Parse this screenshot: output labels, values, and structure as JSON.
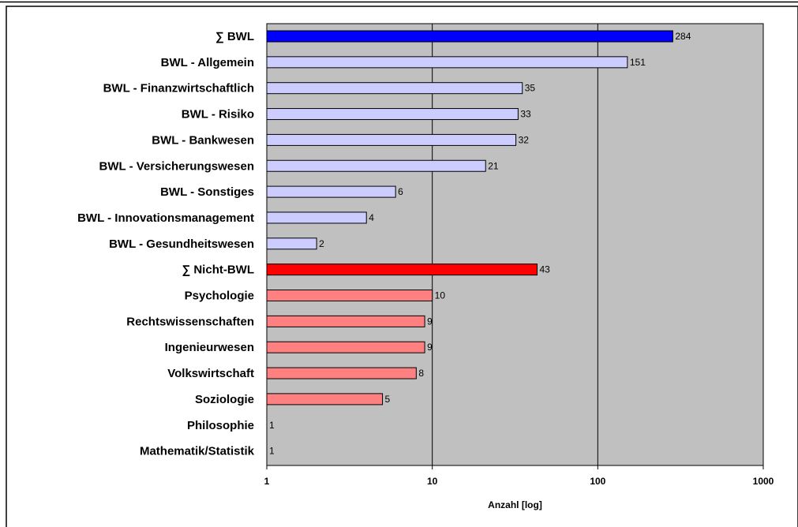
{
  "chart_data": {
    "type": "bar",
    "orientation": "horizontal",
    "xscale": "log",
    "xlabel": "Anzahl [log]",
    "xlim": [
      1,
      1000
    ],
    "xticks": [
      "1",
      "10",
      "100",
      "1000"
    ],
    "grid": true,
    "plot_background": "#c0c0c0",
    "categories": [
      "∑ BWL",
      "BWL - Allgemein",
      "BWL - Finanzwirtschaftlich",
      "BWL - Risiko",
      "BWL - Bankwesen",
      "BWL - Versicherungswesen",
      "BWL - Sonstiges",
      "BWL - Innovationsmanagement",
      "BWL - Gesundheitswesen",
      "∑ Nicht-BWL",
      "Psychologie",
      "Rechtswissenschaften",
      "Ingenieurwesen",
      "Volkswirtschaft",
      "Soziologie",
      "Philosophie",
      "Mathematik/Statistik"
    ],
    "values": [
      284,
      151,
      35,
      33,
      32,
      21,
      6,
      4,
      2,
      43,
      10,
      9,
      9,
      8,
      5,
      1,
      1
    ],
    "bar_colors": [
      "#0000ff",
      "#ccccff",
      "#ccccff",
      "#ccccff",
      "#ccccff",
      "#ccccff",
      "#ccccff",
      "#ccccff",
      "#ccccff",
      "#ff0000",
      "#ff8080",
      "#ff8080",
      "#ff8080",
      "#ff8080",
      "#ff8080",
      "#ff8080",
      "#ff8080"
    ]
  }
}
